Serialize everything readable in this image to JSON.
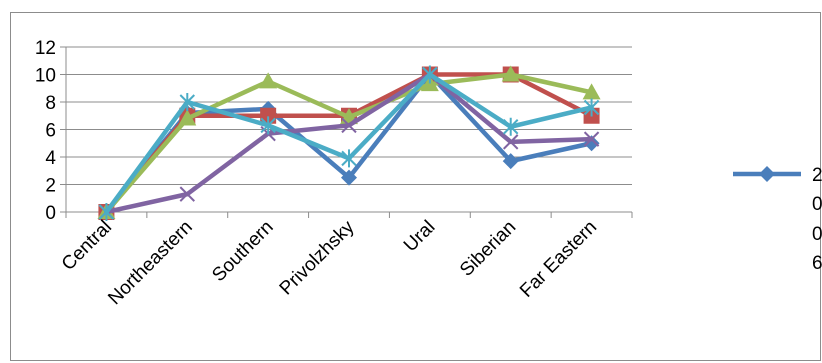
{
  "chart_data": {
    "type": "line",
    "title": "",
    "xlabel": "",
    "ylabel": "",
    "categories": [
      "Central",
      "Northeastern",
      "Southern",
      "Privolzhsky",
      "Ural",
      "Siberian",
      "Far Eastern"
    ],
    "ylim": [
      0,
      12
    ],
    "yticks": [
      0,
      2,
      4,
      6,
      8,
      10,
      12
    ],
    "grid": true,
    "legend_position": "right",
    "legend_visible_text": [
      "2",
      "0",
      "0",
      "6"
    ],
    "series": [
      {
        "color": "#4a7ebb",
        "marker": "diamond",
        "values": [
          0,
          7.2,
          7.5,
          2.5,
          10,
          3.7,
          5.0
        ]
      },
      {
        "color": "#c0504d",
        "marker": "square",
        "values": [
          0,
          7.0,
          7.0,
          7.0,
          10,
          10,
          7.0
        ]
      },
      {
        "color": "#9bbb59",
        "marker": "triangle",
        "values": [
          0,
          6.8,
          9.5,
          6.9,
          9.3,
          10,
          8.7
        ]
      },
      {
        "color": "#8064a2",
        "marker": "x",
        "values": [
          0,
          1.3,
          5.7,
          6.3,
          10,
          5.1,
          5.3
        ]
      },
      {
        "color": "#4bacc6",
        "marker": "star",
        "values": [
          0,
          8.0,
          6.3,
          3.9,
          10,
          6.2,
          7.6
        ]
      }
    ]
  }
}
